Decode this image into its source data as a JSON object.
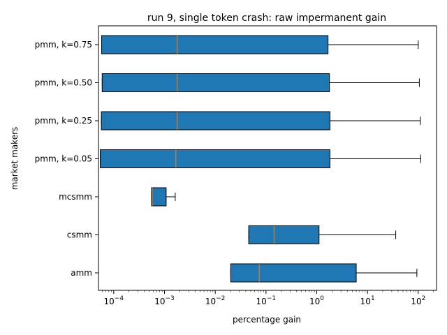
{
  "chart_data": {
    "type": "boxplot",
    "orientation": "horizontal",
    "title": "run 9, single token crash: raw impermanent gain",
    "xlabel": "percentage gain",
    "ylabel": "market makers",
    "xscale": "log",
    "xlim_log10": [
      -4.3,
      2.36
    ],
    "x_ticks": [
      {
        "exp": -4,
        "base": "10",
        "sup": "−4"
      },
      {
        "exp": -3,
        "base": "10",
        "sup": "−3"
      },
      {
        "exp": -2,
        "base": "10",
        "sup": "−2"
      },
      {
        "exp": -1,
        "base": "10",
        "sup": "−1"
      },
      {
        "exp": 0,
        "base": "10",
        "sup": "0"
      },
      {
        "exp": 1,
        "base": "10",
        "sup": "1"
      },
      {
        "exp": 2,
        "base": "10",
        "sup": "2"
      }
    ],
    "categories": [
      "pmm, k=0.75",
      "pmm, k=0.50",
      "pmm, k=0.25",
      "pmm, k=0.05",
      "mcsmm",
      "csmm",
      "amm"
    ],
    "boxes": [
      {
        "label": "pmm, k=0.75",
        "whislo": 5.78e-05,
        "q1": 5.78e-05,
        "med": 0.00178,
        "q3": 1.67,
        "whishi": 100
      },
      {
        "label": "pmm, k=0.50",
        "whislo": 5.93e-05,
        "q1": 5.93e-05,
        "med": 0.00178,
        "q3": 1.78,
        "whishi": 105
      },
      {
        "label": "pmm, k=0.25",
        "whislo": 5.71e-05,
        "q1": 5.71e-05,
        "med": 0.00178,
        "q3": 1.82,
        "whishi": 110
      },
      {
        "label": "pmm, k=0.05",
        "whislo": 5.44e-05,
        "q1": 5.44e-05,
        "med": 0.00168,
        "q3": 1.82,
        "whishi": 112
      },
      {
        "label": "mcsmm",
        "whislo": 0.000556,
        "q1": 0.000556,
        "med": 0.000575,
        "q3": 0.00108,
        "whishi": 0.00163
      },
      {
        "label": "csmm",
        "whislo": 0.0457,
        "q1": 0.0457,
        "med": 0.144,
        "q3": 1.11,
        "whishi": 36
      },
      {
        "label": "amm",
        "whislo": 0.0202,
        "q1": 0.0202,
        "med": 0.0735,
        "q3": 6.0,
        "whishi": 94
      }
    ]
  }
}
